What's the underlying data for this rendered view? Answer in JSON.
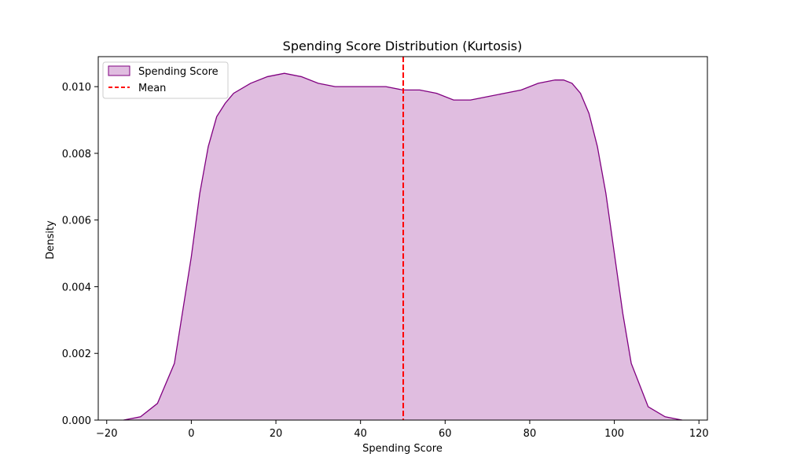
{
  "chart_data": {
    "type": "area",
    "title": "Spending Score Distribution (Kurtosis)",
    "xlabel": "Spending Score",
    "ylabel": "Density",
    "xlim": [
      -22,
      122
    ],
    "ylim": [
      0,
      0.0109
    ],
    "xticks": [
      -20,
      0,
      20,
      40,
      60,
      80,
      100,
      120
    ],
    "xtick_labels": [
      "−20",
      "0",
      "20",
      "40",
      "60",
      "80",
      "100",
      "120"
    ],
    "yticks": [
      0,
      0.002,
      0.004,
      0.006,
      0.008,
      0.01
    ],
    "ytick_labels": [
      "0.000",
      "0.002",
      "0.004",
      "0.006",
      "0.008",
      "0.010"
    ],
    "grid": false,
    "legend_position": "top-left",
    "series": [
      {
        "name": "Spending Score",
        "kind": "kde-area",
        "fill_color": "#e0bde0",
        "line_color": "#800080",
        "x": [
          -16,
          -12,
          -8,
          -4,
          0,
          2,
          4,
          6,
          8,
          10,
          14,
          18,
          22,
          26,
          30,
          34,
          38,
          42,
          46,
          50,
          54,
          58,
          62,
          66,
          70,
          74,
          78,
          82,
          86,
          88,
          90,
          92,
          94,
          96,
          98,
          100,
          102,
          104,
          108,
          112,
          116
        ],
        "y": [
          0.0,
          0.0001,
          0.0005,
          0.0017,
          0.0049,
          0.0068,
          0.0082,
          0.0091,
          0.0095,
          0.0098,
          0.0101,
          0.0103,
          0.0104,
          0.0103,
          0.0101,
          0.01,
          0.01,
          0.01,
          0.01,
          0.0099,
          0.0099,
          0.0098,
          0.0096,
          0.0096,
          0.0097,
          0.0098,
          0.0099,
          0.0101,
          0.0102,
          0.0102,
          0.0101,
          0.0098,
          0.0092,
          0.0082,
          0.0068,
          0.005,
          0.0032,
          0.0017,
          0.0004,
          0.0001,
          0.0
        ]
      },
      {
        "name": "Mean",
        "kind": "vline",
        "x": 50.1,
        "line_color": "#ff0000",
        "dashed": true
      }
    ]
  }
}
